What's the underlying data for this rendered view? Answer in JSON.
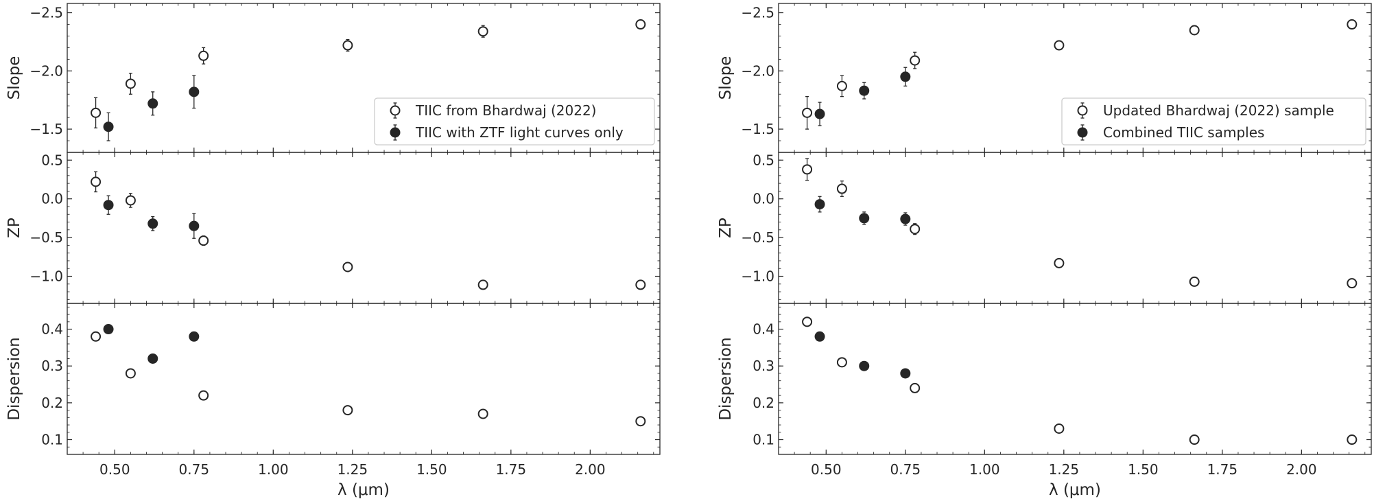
{
  "chart_data": [
    {
      "type": "scatter",
      "xlabel": "λ  (μm)",
      "xlim": [
        0.35,
        2.22
      ],
      "xticks": [
        0.5,
        0.75,
        1.0,
        1.25,
        1.5,
        1.75,
        2.0
      ],
      "legend": {
        "placement": "right",
        "entries": [
          "TIIC from Bhardwaj (2022)",
          "TIIC with ZTF light curves only"
        ]
      },
      "panels": [
        {
          "ylabel": "Slope",
          "ylim": [
            -1.3,
            -2.58
          ],
          "inverted": true,
          "yticks": [
            -2.5,
            -2.0,
            -1.5
          ],
          "series": [
            {
              "name": "TIIC from Bhardwaj (2022)",
              "marker": "open",
              "x": [
                0.44,
                0.55,
                0.78,
                1.235,
                1.662,
                2.159
              ],
              "y": [
                -1.64,
                -1.89,
                -2.13,
                -2.22,
                -2.34,
                -2.4
              ],
              "err": [
                0.13,
                0.09,
                0.07,
                0.05,
                0.05,
                0.03
              ]
            },
            {
              "name": "TIIC with ZTF light curves only",
              "marker": "filled",
              "x": [
                0.48,
                0.62,
                0.75
              ],
              "y": [
                -1.52,
                -1.72,
                -1.82
              ],
              "err": [
                0.12,
                0.1,
                0.14
              ]
            }
          ]
        },
        {
          "ylabel": "ZP",
          "ylim": [
            -1.35,
            0.6
          ],
          "yticks": [
            0.5,
            0.0,
            -0.5,
            -1.0
          ],
          "series": [
            {
              "name": "TIIC from Bhardwaj (2022)",
              "marker": "open",
              "x": [
                0.44,
                0.55,
                0.78,
                1.235,
                1.662,
                2.159
              ],
              "y": [
                0.22,
                -0.02,
                -0.54,
                -0.88,
                -1.11,
                -1.11
              ],
              "err": [
                0.13,
                0.09,
                0.06,
                0.04,
                0.04,
                0.03
              ]
            },
            {
              "name": "TIIC with ZTF light curves only",
              "marker": "filled",
              "x": [
                0.48,
                0.62,
                0.75
              ],
              "y": [
                -0.08,
                -0.32,
                -0.35
              ],
              "err": [
                0.12,
                0.09,
                0.16
              ]
            }
          ]
        },
        {
          "ylabel": "Dispersion",
          "ylim": [
            0.06,
            0.47
          ],
          "yticks": [
            0.1,
            0.2,
            0.3,
            0.4
          ],
          "series": [
            {
              "name": "TIIC from Bhardwaj (2022)",
              "marker": "open",
              "x": [
                0.44,
                0.55,
                0.78,
                1.235,
                1.662,
                2.159
              ],
              "y": [
                0.38,
                0.28,
                0.22,
                0.18,
                0.17,
                0.15
              ]
            },
            {
              "name": "TIIC with ZTF light curves only",
              "marker": "filled",
              "x": [
                0.48,
                0.62,
                0.75
              ],
              "y": [
                0.4,
                0.32,
                0.38
              ]
            }
          ]
        }
      ]
    },
    {
      "type": "scatter",
      "xlabel": "λ  (μm)",
      "xlim": [
        0.35,
        2.22
      ],
      "xticks": [
        0.5,
        0.75,
        1.0,
        1.25,
        1.5,
        1.75,
        2.0
      ],
      "legend": {
        "placement": "right",
        "entries": [
          "Updated Bhardwaj (2022) sample",
          "Combined TIIC samples"
        ]
      },
      "panels": [
        {
          "ylabel": "Slope",
          "ylim": [
            -1.3,
            -2.58
          ],
          "inverted": true,
          "yticks": [
            -2.5,
            -2.0,
            -1.5
          ],
          "series": [
            {
              "name": "Updated Bhardwaj (2022) sample",
              "marker": "open",
              "x": [
                0.44,
                0.55,
                0.78,
                1.235,
                1.662,
                2.159
              ],
              "y": [
                -1.64,
                -1.87,
                -2.09,
                -2.22,
                -2.35,
                -2.4
              ],
              "err": [
                0.14,
                0.09,
                0.07,
                0.03,
                0.03,
                0.02
              ]
            },
            {
              "name": "Combined TIIC samples",
              "marker": "filled",
              "x": [
                0.48,
                0.62,
                0.75
              ],
              "y": [
                -1.63,
                -1.83,
                -1.95
              ],
              "err": [
                0.1,
                0.07,
                0.08
              ]
            }
          ]
        },
        {
          "ylabel": "ZP",
          "ylim": [
            -1.35,
            0.6
          ],
          "yticks": [
            0.5,
            0.0,
            -0.5,
            -1.0
          ],
          "series": [
            {
              "name": "Updated Bhardwaj (2022) sample",
              "marker": "open",
              "x": [
                0.44,
                0.55,
                0.78,
                1.235,
                1.662,
                2.159
              ],
              "y": [
                0.38,
                0.13,
                -0.39,
                -0.83,
                -1.07,
                -1.09
              ],
              "err": [
                0.14,
                0.1,
                0.07,
                0.03,
                0.03,
                0.02
              ]
            },
            {
              "name": "Combined TIIC samples",
              "marker": "filled",
              "x": [
                0.48,
                0.62,
                0.75
              ],
              "y": [
                -0.07,
                -0.25,
                -0.26
              ],
              "err": [
                0.1,
                0.08,
                0.08
              ]
            }
          ]
        },
        {
          "ylabel": "Dispersion",
          "ylim": [
            0.06,
            0.47
          ],
          "yticks": [
            0.1,
            0.2,
            0.3,
            0.4
          ],
          "series": [
            {
              "name": "Updated Bhardwaj (2022) sample",
              "marker": "open",
              "x": [
                0.44,
                0.55,
                0.78,
                1.235,
                1.662,
                2.159
              ],
              "y": [
                0.42,
                0.31,
                0.24,
                0.13,
                0.1,
                0.1
              ]
            },
            {
              "name": "Combined TIIC samples",
              "marker": "filled",
              "x": [
                0.48,
                0.62,
                0.75
              ],
              "y": [
                0.38,
                0.3,
                0.28
              ]
            }
          ]
        }
      ]
    }
  ]
}
